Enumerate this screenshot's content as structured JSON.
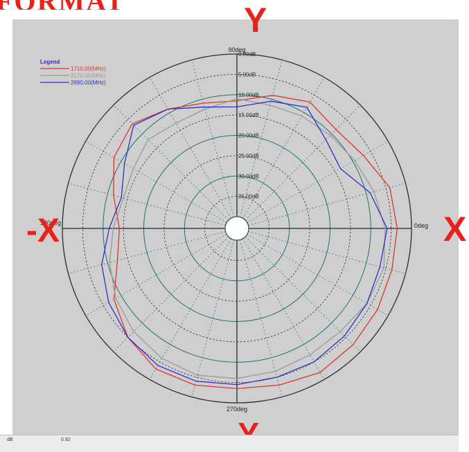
{
  "header": {
    "cropped_title": "FORMAT"
  },
  "axis_markers": {
    "top": "Y",
    "bottom": "-Y",
    "left": "-X",
    "right": "X"
  },
  "status_bar": {
    "left": "dB",
    "value": "0.92"
  },
  "colors": {
    "series_1": "#e0322c",
    "series_2": "#9a9a9a",
    "series_3": "#2f2fc8",
    "marker": "#e8211b",
    "panel": "#cfcfcf"
  },
  "chart_data": {
    "type": "polar",
    "angle_unit": "deg",
    "angle_labels": [
      "0deg",
      "90deg",
      "180deg",
      "270deg"
    ],
    "radial_labels": [
      "0.00dB",
      "5.00dB",
      "10.00dB",
      "15.00dB",
      "20.00dB",
      "25.00dB",
      "30.00dB",
      "35.00dB"
    ],
    "radial_ticks_db": [
      0,
      5,
      10,
      15,
      20,
      25,
      30,
      35
    ],
    "radial_range_db": [
      0,
      40
    ],
    "legend_title": "Legend",
    "legend_position": "top-left",
    "angles": [
      0,
      15,
      30,
      45,
      60,
      75,
      90,
      105,
      120,
      135,
      150,
      165,
      180,
      195,
      210,
      225,
      240,
      255,
      270,
      285,
      300,
      315,
      330,
      345
    ],
    "series": [
      {
        "name": "1710.00(MHz)",
        "color": "#e0322c",
        "values_db": [
          3.5,
          4.0,
          7.0,
          8.5,
          7.0,
          9.0,
          11.5,
          11.0,
          9.0,
          6.5,
          8.0,
          11.5,
          14.0,
          12.5,
          8.0,
          5.0,
          3.0,
          3.0,
          3.5,
          3.0,
          2.0,
          2.5,
          3.0,
          3.5
        ]
      },
      {
        "name": "2170.00(MHz)",
        "color": "#9a9a9a",
        "values_db": [
          6.5,
          8.0,
          9.5,
          10.5,
          11.0,
          11.5,
          11.0,
          12.5,
          13.0,
          12.0,
          13.5,
          14.0,
          12.5,
          10.5,
          8.5,
          7.0,
          6.0,
          5.5,
          6.0,
          6.5,
          7.0,
          7.0,
          6.0,
          5.5
        ]
      },
      {
        "name": "2690.00(MHz)",
        "color": "#2f2fc8",
        "values_db": [
          6.0,
          9.0,
          13.5,
          12.0,
          8.5,
          10.5,
          13.0,
          12.0,
          9.0,
          7.0,
          11.0,
          13.5,
          11.5,
          8.5,
          6.5,
          5.0,
          4.0,
          4.0,
          4.5,
          5.0,
          5.0,
          5.5,
          6.0,
          6.5
        ]
      }
    ]
  }
}
